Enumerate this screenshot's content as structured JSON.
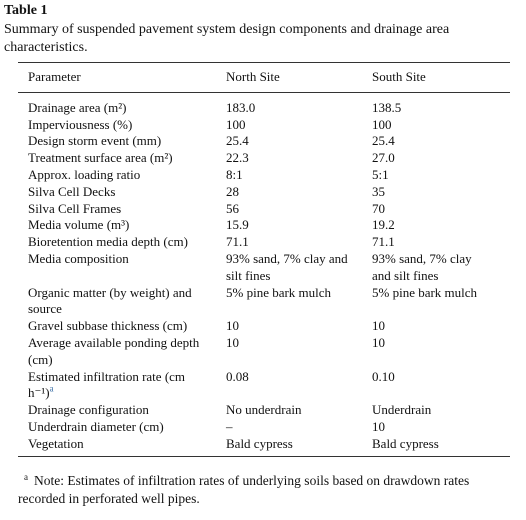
{
  "header": {
    "label": "Table 1",
    "caption": "Summary of suspended pavement system design components and drainage area characteristics."
  },
  "table": {
    "columns": [
      "Parameter",
      "North Site",
      "South Site"
    ],
    "rows": [
      {
        "parameter": "Drainage area (m²)",
        "north": "183.0",
        "south": "138.5"
      },
      {
        "parameter": "Imperviousness (%)",
        "north": "100",
        "south": "100"
      },
      {
        "parameter": "Design storm event (mm)",
        "north": "25.4",
        "south": "25.4"
      },
      {
        "parameter": "Treatment surface area (m²)",
        "north": "22.3",
        "south": "27.0"
      },
      {
        "parameter": "Approx. loading ratio",
        "north": "8:1",
        "south": "5:1"
      },
      {
        "parameter": "Silva Cell Decks",
        "north": "28",
        "south": "35"
      },
      {
        "parameter": "Silva Cell Frames",
        "north": "56",
        "south": "70"
      },
      {
        "parameter": "Media volume (m³)",
        "north": "15.9",
        "south": "19.2"
      },
      {
        "parameter": "Bioretention media depth (cm)",
        "north": "71.1",
        "south": "71.1"
      },
      {
        "parameter": "Media composition",
        "north": "93% sand, 7% clay and silt fines",
        "south": "93% sand, 7% clay and silt fines"
      },
      {
        "parameter": "Organic matter (by weight) and source",
        "north": "5% pine bark mulch",
        "south": "5% pine bark mulch"
      },
      {
        "parameter": "Gravel subbase thickness (cm)",
        "north": "10",
        "south": "10"
      },
      {
        "parameter": "Average available ponding depth (cm)",
        "north": "10",
        "south": "10"
      },
      {
        "parameter": "Estimated infiltration rate (cm h⁻¹)",
        "note_ref": "a",
        "north": "0.08",
        "south": "0.10"
      },
      {
        "parameter": "Drainage configuration",
        "north": "No underdrain",
        "south": "Underdrain"
      },
      {
        "parameter": "Underdrain diameter (cm)",
        "north": "–",
        "south": "10"
      },
      {
        "parameter": "Vegetation",
        "north": "Bald cypress",
        "south": "Bald cypress"
      }
    ]
  },
  "footnote": {
    "marker": "a",
    "text": "Note: Estimates of infiltration rates of underlying soils based on drawdown rates recorded in perforated well pipes."
  }
}
